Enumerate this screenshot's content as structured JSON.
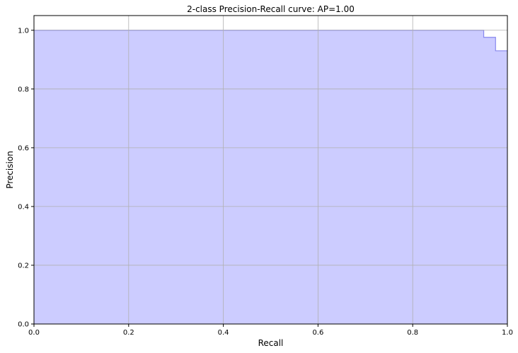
{
  "chart_data": {
    "type": "area",
    "title": "2-class Precision-Recall curve: AP=1.00",
    "xlabel": "Recall",
    "ylabel": "Precision",
    "xlim": [
      0.0,
      1.0
    ],
    "ylim": [
      0.0,
      1.05
    ],
    "xticks": [
      "0.0",
      "0.2",
      "0.4",
      "0.6",
      "0.8",
      "1.0"
    ],
    "yticks": [
      "0.0",
      "0.2",
      "0.4",
      "0.6",
      "0.8",
      "1.0"
    ],
    "grid": true,
    "step": "post",
    "series": [
      {
        "x": [
          0.0,
          0.95,
          0.975,
          1.0
        ],
        "y": [
          1.0,
          0.976,
          0.93,
          0.93
        ]
      }
    ],
    "colors": {
      "fill": "#ccccff",
      "line": "#8888ee",
      "grid": "#b0b0b0",
      "axis": "#000000"
    }
  }
}
